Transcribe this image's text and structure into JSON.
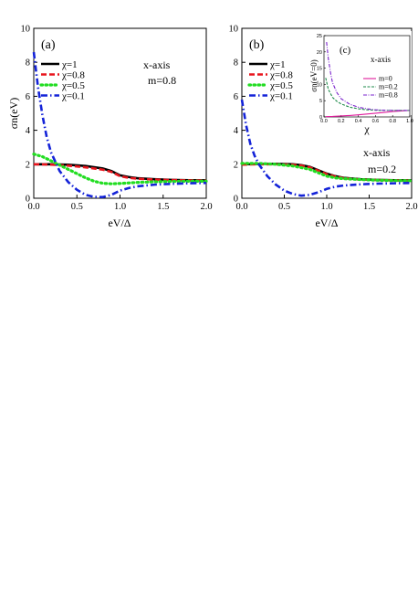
{
  "chart_data": [
    {
      "type": "line",
      "panel_label": "(a)",
      "annotation": [
        "x-axis",
        "m=0.8"
      ],
      "xlabel": "eV/Δ",
      "ylabel": "σn(eV)",
      "xlim": [
        0.0,
        2.0
      ],
      "ylim": [
        0,
        10
      ],
      "xticks": [
        "0.0",
        "0.5",
        "1.0",
        "1.5",
        "2.0"
      ],
      "yticks": [
        "0",
        "2",
        "4",
        "6",
        "8",
        "10"
      ],
      "legend_position": "upper-left",
      "series": [
        {
          "name": "χ=1",
          "color": "#000000",
          "dash": "solid",
          "x": [
            0.0,
            0.2,
            0.4,
            0.6,
            0.8,
            0.9,
            1.0,
            1.1,
            1.2,
            1.4,
            1.6,
            1.8,
            2.0
          ],
          "y": [
            2.0,
            2.0,
            1.97,
            1.9,
            1.75,
            1.6,
            1.35,
            1.25,
            1.18,
            1.12,
            1.08,
            1.06,
            1.05
          ]
        },
        {
          "name": "χ=0.8",
          "color": "#e8141c",
          "dash": "dash",
          "x": [
            0.0,
            0.2,
            0.4,
            0.6,
            0.8,
            0.9,
            1.0,
            1.1,
            1.2,
            1.4,
            1.6,
            1.8,
            2.0
          ],
          "y": [
            2.0,
            1.98,
            1.92,
            1.82,
            1.68,
            1.55,
            1.3,
            1.2,
            1.15,
            1.1,
            1.07,
            1.05,
            1.04
          ]
        },
        {
          "name": "χ=0.5",
          "color": "#22dd22",
          "dash": "dot",
          "x": [
            0.0,
            0.1,
            0.2,
            0.3,
            0.4,
            0.5,
            0.6,
            0.7,
            0.8,
            0.9,
            1.0,
            1.2,
            1.4,
            1.6,
            1.8,
            2.0
          ],
          "y": [
            2.6,
            2.45,
            2.2,
            1.95,
            1.7,
            1.45,
            1.2,
            1.0,
            0.88,
            0.85,
            0.87,
            0.93,
            0.97,
            0.99,
            1.0,
            1.0
          ]
        },
        {
          "name": "χ=0.1",
          "color": "#1423d8",
          "dash": "dashdot",
          "x": [
            0.0,
            0.05,
            0.1,
            0.15,
            0.2,
            0.3,
            0.4,
            0.5,
            0.6,
            0.7,
            0.8,
            0.9,
            1.0,
            1.1,
            1.2,
            1.4,
            1.6,
            1.8,
            2.0
          ],
          "y": [
            8.6,
            6.5,
            4.9,
            3.6,
            2.7,
            1.6,
            0.95,
            0.5,
            0.2,
            0.08,
            0.07,
            0.2,
            0.45,
            0.6,
            0.7,
            0.8,
            0.85,
            0.88,
            0.9
          ]
        }
      ]
    },
    {
      "type": "line",
      "panel_label": "(b)",
      "annotation": [
        "x-axis",
        "m=0.2"
      ],
      "xlabel": "eV/Δ",
      "ylabel": "",
      "xlim": [
        0.0,
        2.0
      ],
      "ylim": [
        0,
        10
      ],
      "xticks": [
        "0.0",
        "0.5",
        "1.0",
        "1.5",
        "2.0"
      ],
      "yticks": [
        "0",
        "2",
        "4",
        "6",
        "8",
        "10"
      ],
      "legend_position": "upper-left",
      "series": [
        {
          "name": "χ=1",
          "color": "#000000",
          "dash": "solid",
          "x": [
            0.0,
            0.2,
            0.4,
            0.6,
            0.7,
            0.8,
            0.9,
            1.0,
            1.1,
            1.2,
            1.4,
            1.6,
            1.8,
            2.0
          ],
          "y": [
            2.0,
            2.02,
            2.03,
            2.0,
            1.95,
            1.85,
            1.65,
            1.45,
            1.3,
            1.2,
            1.12,
            1.08,
            1.06,
            1.05
          ]
        },
        {
          "name": "χ=0.8",
          "color": "#e8141c",
          "dash": "dash",
          "x": [
            0.0,
            0.2,
            0.4,
            0.6,
            0.7,
            0.8,
            0.9,
            1.0,
            1.1,
            1.2,
            1.4,
            1.6,
            1.8,
            2.0
          ],
          "y": [
            1.98,
            2.0,
            2.0,
            1.97,
            1.92,
            1.82,
            1.62,
            1.42,
            1.28,
            1.18,
            1.1,
            1.07,
            1.05,
            1.04
          ]
        },
        {
          "name": "χ=0.5",
          "color": "#22dd22",
          "dash": "dot",
          "x": [
            0.0,
            0.2,
            0.4,
            0.6,
            0.8,
            0.9,
            1.0,
            1.1,
            1.2,
            1.4,
            1.6,
            1.8,
            2.0
          ],
          "y": [
            2.05,
            2.05,
            2.0,
            1.9,
            1.7,
            1.5,
            1.3,
            1.2,
            1.15,
            1.1,
            1.06,
            1.04,
            1.03
          ]
        },
        {
          "name": "χ=0.1",
          "color": "#1423d8",
          "dash": "dashdot",
          "x": [
            0.0,
            0.05,
            0.1,
            0.15,
            0.2,
            0.3,
            0.4,
            0.5,
            0.6,
            0.7,
            0.8,
            0.9,
            1.0,
            1.1,
            1.2,
            1.4,
            1.6,
            1.8,
            2.0
          ],
          "y": [
            5.8,
            4.3,
            3.2,
            2.5,
            2.0,
            1.3,
            0.8,
            0.45,
            0.25,
            0.15,
            0.2,
            0.35,
            0.55,
            0.68,
            0.75,
            0.82,
            0.86,
            0.88,
            0.9
          ]
        }
      ]
    },
    {
      "type": "line",
      "panel_label": "(c)",
      "annotation": [
        "x-axis"
      ],
      "xlabel": "χ",
      "ylabel": "σn(eV=0)",
      "xlim": [
        0.0,
        1.0
      ],
      "ylim": [
        0,
        25
      ],
      "xticks": [
        "0.0",
        "0.2",
        "0.4",
        "0.6",
        "0.8",
        "1.0"
      ],
      "yticks": [
        "0",
        "5",
        "10",
        "15",
        "20",
        "25"
      ],
      "legend_position": "center-right",
      "series": [
        {
          "name": "m=0",
          "color": "#e01c9c",
          "dash": "solid",
          "x": [
            0.02,
            0.1,
            0.2,
            0.3,
            0.4,
            0.5,
            0.6,
            0.7,
            0.8,
            0.9,
            1.0
          ],
          "y": [
            0.1,
            0.15,
            0.3,
            0.45,
            0.65,
            0.9,
            1.15,
            1.4,
            1.65,
            1.85,
            2.0
          ]
        },
        {
          "name": "m=0.2",
          "color": "#1e8a4a",
          "dash": "dash",
          "x": [
            0.02,
            0.05,
            0.1,
            0.15,
            0.2,
            0.3,
            0.4,
            0.5,
            0.6,
            0.7,
            0.8,
            0.9,
            1.0
          ],
          "y": [
            12.0,
            8.5,
            6.0,
            4.8,
            4.0,
            3.0,
            2.5,
            2.2,
            2.05,
            2.0,
            2.0,
            2.0,
            2.0
          ]
        },
        {
          "name": "m=0.8",
          "color": "#7a22cc",
          "dash": "dashdot",
          "x": [
            0.03,
            0.05,
            0.08,
            0.1,
            0.15,
            0.2,
            0.3,
            0.4,
            0.5,
            0.6,
            0.7,
            0.8,
            0.9,
            1.0
          ],
          "y": [
            23.0,
            18.0,
            13.0,
            10.5,
            7.5,
            5.6,
            3.9,
            3.0,
            2.5,
            2.2,
            2.05,
            2.0,
            2.0,
            2.0
          ]
        }
      ]
    }
  ]
}
